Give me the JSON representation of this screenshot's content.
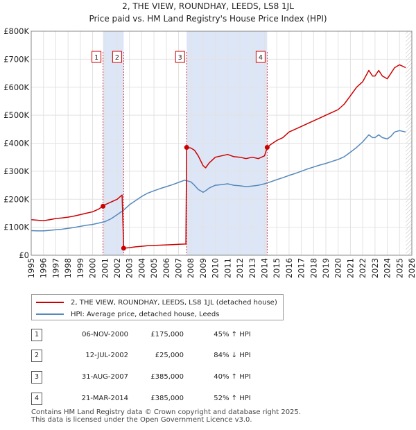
{
  "chart_data": {
    "type": "line",
    "title": "2, THE VIEW, ROUNDHAY, LEEDS, LS8 1JL",
    "subtitle": "Price paid vs. HM Land Registry's House Price Index (HPI)",
    "xlim": [
      1995,
      2026
    ],
    "ylim": [
      0,
      800000
    ],
    "x_ticks": [
      "1995",
      "1996",
      "1997",
      "1998",
      "1999",
      "2000",
      "2001",
      "2002",
      "2003",
      "2004",
      "2005",
      "2006",
      "2007",
      "2008",
      "2009",
      "2010",
      "2011",
      "2012",
      "2013",
      "2014",
      "2015",
      "2016",
      "2017",
      "2018",
      "2019",
      "2020",
      "2021",
      "2022",
      "2023",
      "2024",
      "2025",
      "2026"
    ],
    "y_ticks": [
      {
        "value": 0,
        "label": "£0"
      },
      {
        "value": 100000,
        "label": "£100K"
      },
      {
        "value": 200000,
        "label": "£200K"
      },
      {
        "value": 300000,
        "label": "£300K"
      },
      {
        "value": 400000,
        "label": "£400K"
      },
      {
        "value": 500000,
        "label": "£500K"
      },
      {
        "value": 600000,
        "label": "£600K"
      },
      {
        "value": 700000,
        "label": "£700K"
      },
      {
        "value": 800000,
        "label": "£800K"
      }
    ],
    "grid": true,
    "shaded_periods": [
      [
        2000.85,
        2002.53
      ],
      [
        2007.66,
        2014.22
      ]
    ],
    "future_hatch_start": 2025.5,
    "series": [
      {
        "name": "2, THE VIEW, ROUNDHAY, LEEDS, LS8 1JL (detached house)",
        "color": "#cc0000",
        "x": [
          1995,
          1995.5,
          1996,
          1996.5,
          1997,
          1997.5,
          1998,
          1998.5,
          1999,
          1999.5,
          2000,
          2000.5,
          2000.85,
          2001,
          2001.5,
          2002,
          2002.4,
          2002.53,
          2002.54,
          2003,
          2003.5,
          2004,
          2004.5,
          2005,
          2005.5,
          2006,
          2006.5,
          2007,
          2007.5,
          2007.6,
          2007.66,
          2008,
          2008.3,
          2008.6,
          2009,
          2009.2,
          2009.5,
          2010,
          2010.5,
          2011,
          2011.5,
          2012,
          2012.5,
          2013,
          2013.5,
          2014,
          2014.22,
          2014.5,
          2015,
          2015.5,
          2016,
          2016.5,
          2017,
          2017.5,
          2018,
          2018.5,
          2019,
          2019.5,
          2020,
          2020.5,
          2021,
          2021.5,
          2022,
          2022.5,
          2022.8,
          2023,
          2023.3,
          2023.6,
          2024,
          2024.3,
          2024.6,
          2025,
          2025.5
        ],
        "y": [
          127000,
          125000,
          123000,
          127000,
          131000,
          133000,
          136000,
          140000,
          145000,
          150000,
          155000,
          165000,
          175000,
          180000,
          190000,
          200000,
          215000,
          25000,
          25000,
          27000,
          30000,
          32000,
          34000,
          35000,
          36000,
          37000,
          38000,
          39000,
          40000,
          40000,
          385000,
          383000,
          375000,
          355000,
          320000,
          312000,
          330000,
          350000,
          355000,
          360000,
          352000,
          350000,
          345000,
          350000,
          345000,
          355000,
          385000,
          395000,
          410000,
          420000,
          440000,
          450000,
          460000,
          470000,
          480000,
          490000,
          500000,
          510000,
          520000,
          540000,
          570000,
          600000,
          620000,
          660000,
          640000,
          640000,
          660000,
          640000,
          630000,
          650000,
          670000,
          680000,
          670000
        ]
      },
      {
        "name": "HPI: Average price, detached house, Leeds",
        "color": "#5588bb",
        "x": [
          1995,
          1995.5,
          1996,
          1996.5,
          1997,
          1997.5,
          1998,
          1998.5,
          1999,
          1999.5,
          2000,
          2000.5,
          2001,
          2001.5,
          2002,
          2002.5,
          2003,
          2003.5,
          2004,
          2004.5,
          2005,
          2005.5,
          2006,
          2006.5,
          2007,
          2007.5,
          2008,
          2008.3,
          2008.6,
          2009,
          2009.2,
          2009.5,
          2010,
          2010.5,
          2011,
          2011.5,
          2012,
          2012.5,
          2013,
          2013.5,
          2014,
          2014.5,
          2015,
          2015.5,
          2016,
          2016.5,
          2017,
          2017.5,
          2018,
          2018.5,
          2019,
          2019.5,
          2020,
          2020.5,
          2021,
          2021.5,
          2022,
          2022.5,
          2022.8,
          2023,
          2023.3,
          2023.6,
          2024,
          2024.3,
          2024.6,
          2025,
          2025.5
        ],
        "y": [
          88000,
          87000,
          87000,
          89000,
          91000,
          93000,
          96000,
          99000,
          103000,
          107000,
          110000,
          115000,
          120000,
          130000,
          145000,
          160000,
          180000,
          195000,
          210000,
          222000,
          230000,
          238000,
          245000,
          252000,
          260000,
          268000,
          262000,
          250000,
          235000,
          225000,
          230000,
          240000,
          250000,
          252000,
          255000,
          250000,
          248000,
          245000,
          247000,
          250000,
          255000,
          262000,
          270000,
          277000,
          285000,
          292000,
          300000,
          308000,
          315000,
          322000,
          328000,
          335000,
          342000,
          352000,
          368000,
          385000,
          405000,
          430000,
          420000,
          420000,
          430000,
          420000,
          415000,
          425000,
          440000,
          445000,
          440000
        ]
      }
    ],
    "sales": [
      {
        "num": "1",
        "x": 2000.85,
        "y": 175000
      },
      {
        "num": "2",
        "x": 2002.53,
        "y": 25000
      },
      {
        "num": "3",
        "x": 2007.66,
        "y": 385000
      },
      {
        "num": "4",
        "x": 2014.22,
        "y": 385000
      }
    ]
  },
  "legend": {
    "property_label": "2, THE VIEW, ROUNDHAY, LEEDS, LS8 1JL (detached house)",
    "hpi_label": "HPI: Average price, detached house, Leeds"
  },
  "table": [
    {
      "num": "1",
      "date": "06-NOV-2000",
      "price": "£175,000",
      "hpi": "45% ↑ HPI"
    },
    {
      "num": "2",
      "date": "12-JUL-2002",
      "price": "£25,000",
      "hpi": "84% ↓ HPI"
    },
    {
      "num": "3",
      "date": "31-AUG-2007",
      "price": "£385,000",
      "hpi": "40% ↑ HPI"
    },
    {
      "num": "4",
      "date": "21-MAR-2014",
      "price": "£385,000",
      "hpi": "52% ↑ HPI"
    }
  ],
  "footer": {
    "line1": "Contains HM Land Registry data © Crown copyright and database right 2025.",
    "line2": "This data is licensed under the Open Government Licence v3.0."
  },
  "colors": {
    "property": "#cc0000",
    "hpi": "#5588bb",
    "shade": "#dde6f6",
    "grid": "#e2e2e2",
    "marker_line": "#dd3333"
  }
}
